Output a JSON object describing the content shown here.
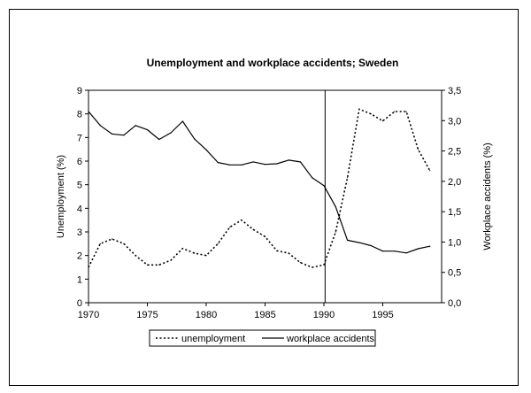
{
  "chart_data": {
    "type": "line",
    "title": "Unemployment and workplace accidents; Sweden",
    "xlabel": "",
    "ylabel": "Unemployment (%)",
    "y2label": "Workplace accidents (%)",
    "xlim": [
      1970,
      2000
    ],
    "ylim": [
      0,
      9
    ],
    "y2lim": [
      0,
      3.5
    ],
    "xticks": [
      1970,
      1975,
      1980,
      1985,
      1990,
      1995
    ],
    "yticks": [
      "0",
      "1",
      "2",
      "3",
      "4",
      "5",
      "6",
      "7",
      "8",
      "9"
    ],
    "y2ticks": [
      "0,0",
      "0,5",
      "1,0",
      "1,5",
      "2,0",
      "2,5",
      "3,0",
      "3,5"
    ],
    "vline_x": 1990.1,
    "grid": false,
    "legend_position": "bottom",
    "x": [
      1970,
      1971,
      1972,
      1973,
      1974,
      1975,
      1976,
      1977,
      1978,
      1979,
      1980,
      1981,
      1982,
      1983,
      1984,
      1985,
      1986,
      1987,
      1988,
      1989,
      1990,
      1991,
      1992,
      1993,
      1994,
      1995,
      1996,
      1997,
      1998,
      1999
    ],
    "series": [
      {
        "name": "unemployment",
        "axis": "left",
        "style": "dotted",
        "values": [
          1.5,
          2.5,
          2.7,
          2.5,
          2.0,
          1.6,
          1.6,
          1.8,
          2.3,
          2.1,
          2.0,
          2.5,
          3.2,
          3.5,
          3.1,
          2.8,
          2.2,
          2.1,
          1.7,
          1.5,
          1.6,
          3.0,
          5.3,
          8.2,
          8.0,
          7.7,
          8.1,
          8.1,
          6.5,
          5.6
        ]
      },
      {
        "name": "workplace accidents",
        "axis": "right",
        "style": "solid",
        "values": [
          3.15,
          2.92,
          2.78,
          2.76,
          2.92,
          2.85,
          2.69,
          2.8,
          2.99,
          2.7,
          2.52,
          2.31,
          2.27,
          2.27,
          2.32,
          2.28,
          2.29,
          2.35,
          2.32,
          2.06,
          1.93,
          1.58,
          1.03,
          0.99,
          0.94,
          0.85,
          0.85,
          0.82,
          0.89,
          0.93
        ]
      }
    ]
  }
}
